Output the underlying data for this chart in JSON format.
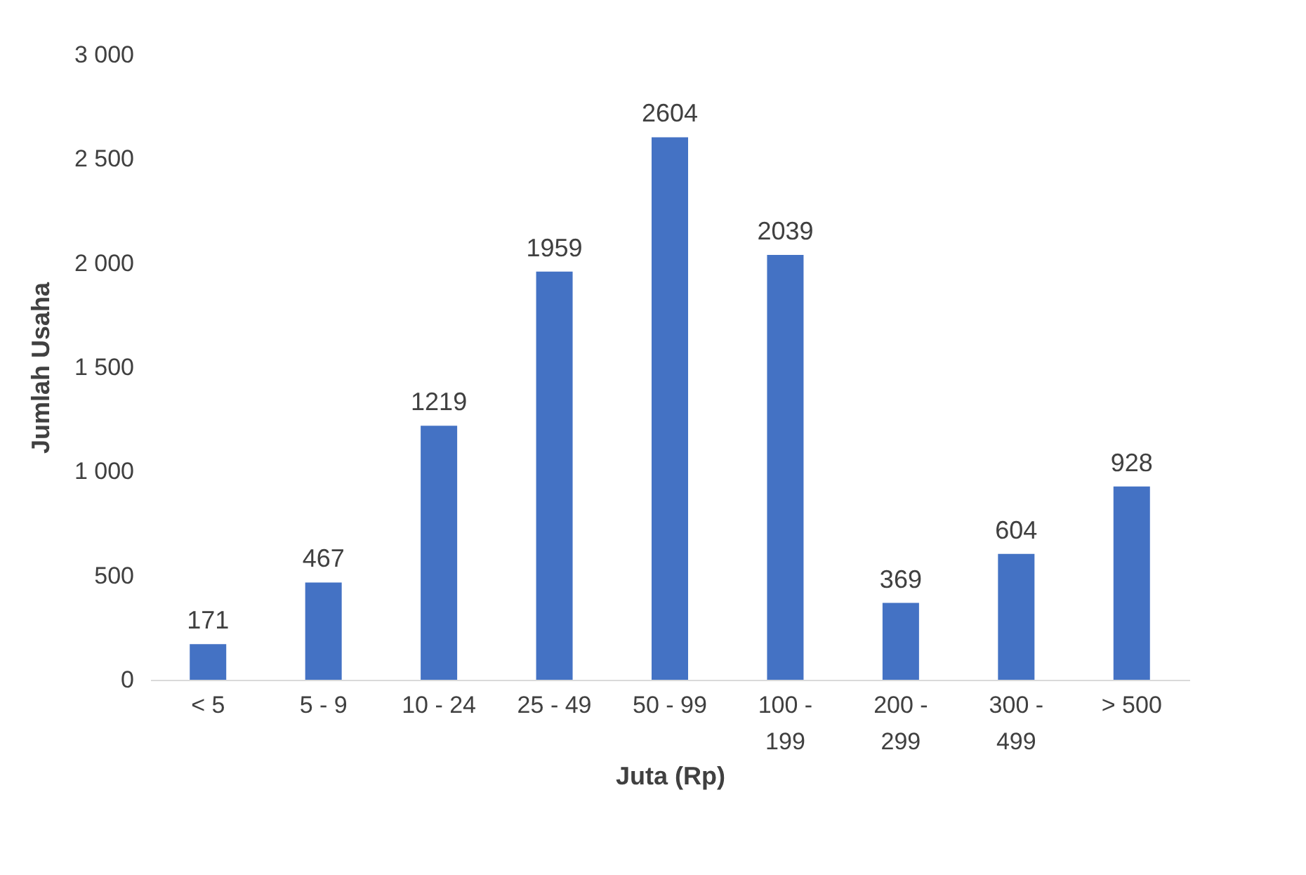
{
  "chart_data": {
    "type": "bar",
    "xlabel": "Juta (Rp)",
    "ylabel": "Jumlah Usaha",
    "categories": [
      "< 5",
      "5 - 9",
      "10 - 24",
      "25 - 49",
      "50 - 99",
      "100 - 199",
      "200 - 299",
      "300 - 499",
      "> 500"
    ],
    "values": [
      171,
      467,
      1219,
      1959,
      2604,
      2039,
      369,
      604,
      928
    ],
    "color": "#4472c4",
    "data_labels": true,
    "grid": false,
    "ylim": [
      0,
      3000
    ],
    "yticks": [
      0,
      500,
      {
        "value": 1000,
        "label": "1 000"
      },
      {
        "value": 1500,
        "label": "1 500"
      },
      {
        "value": 2000,
        "label": "2 000"
      },
      {
        "value": 2500,
        "label": "2 500"
      },
      {
        "value": 3000,
        "label": "3 000"
      }
    ]
  }
}
